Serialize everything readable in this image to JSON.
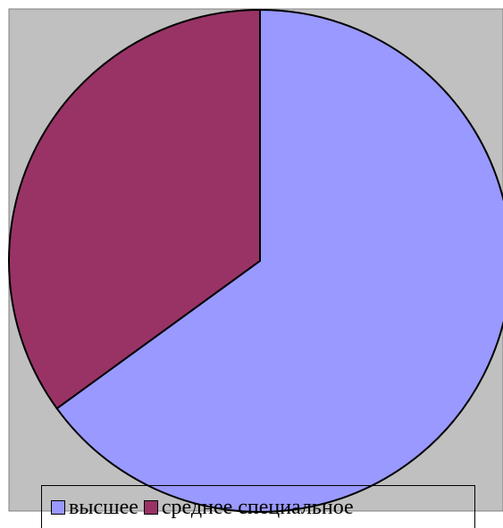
{
  "chart_data": {
    "type": "pie",
    "categories": [
      "высшее",
      "среднее специальное"
    ],
    "values": [
      65,
      35
    ],
    "colors": [
      "#9999ff",
      "#993366"
    ],
    "background": "#c0c0c0",
    "legend_placement": "bottom"
  }
}
